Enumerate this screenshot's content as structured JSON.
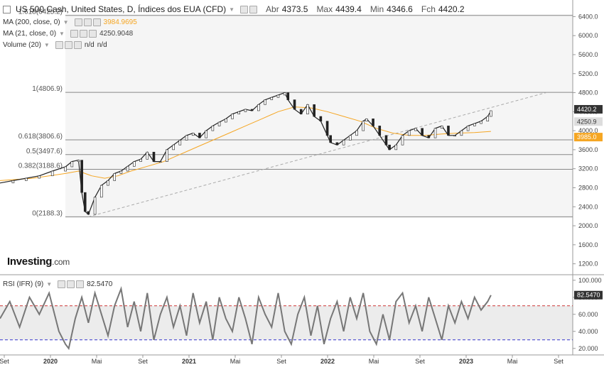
{
  "header": {
    "title": "US 500 Cash, United States, D, Índices dos EUA (CFD)",
    "ohlc": [
      {
        "key": "Abr",
        "value": "4373.5"
      },
      {
        "key": "Max",
        "value": "4439.4"
      },
      {
        "key": "Min",
        "value": "4346.6"
      },
      {
        "key": "Fch",
        "value": "4420.2"
      }
    ]
  },
  "indicators": {
    "ma200": {
      "label": "MA (200, close, 0)",
      "value": "3984.9695",
      "color": "#f5a623"
    },
    "ma21": {
      "label": "MA (21, close, 0)",
      "value": "4250.9048",
      "color": "#888888"
    },
    "volume": {
      "label": "Volume (20)",
      "v1": "n/d",
      "v2": "n/d"
    },
    "rsi": {
      "label": "RSI (IFR) (9)",
      "value": "82.5470"
    }
  },
  "logo": {
    "brand": "Investing",
    "suffix": ".com"
  },
  "price_badges": {
    "close": "4420.2",
    "ma21": "4250.9",
    "ma200": "3985.0"
  },
  "rsi_badge": "82.5470",
  "colors": {
    "up": "#ffffff",
    "down": "#222222",
    "ma200": "#f5a623",
    "ma21": "#999999",
    "rsi": "#777777",
    "fib": "#888888",
    "rsi_upper": "#cc3333",
    "rsi_lower": "#3333cc",
    "badge_close": "#333333",
    "badge_ma": "#f5a623"
  },
  "chart_data": {
    "type": "line",
    "price_axis": {
      "ticks": [
        1200,
        1600,
        2000,
        2400,
        2800,
        3200,
        3600,
        4000,
        4400,
        4800,
        5200,
        5600,
        6000,
        6400
      ],
      "labels": [
        "1200.0",
        "1600.0",
        "2000.0",
        "2400.0",
        "2800.0",
        "3200.0",
        "3600.0",
        "4000.0",
        "4400.0",
        "4800.0",
        "5200.0",
        "5600.0",
        "6000.0",
        "6400.0"
      ],
      "range": [
        1000,
        6600
      ]
    },
    "rsi_axis": {
      "ticks": [
        20,
        40,
        60,
        80,
        100
      ],
      "labels": [
        "20.000",
        "40.000",
        "60.000",
        "80.000",
        "100.000"
      ],
      "range": [
        14,
        104
      ],
      "upper": 70,
      "lower": 30
    },
    "time_axis": {
      "labels": [
        "Set",
        "2020",
        "Mai",
        "Set",
        "2021",
        "Mai",
        "Set",
        "2022",
        "Mai",
        "Set",
        "2023",
        "Mai",
        "Set"
      ],
      "years": [
        "2020",
        "2021",
        "2022",
        "2023"
      ]
    },
    "fib_levels": [
      {
        "label": "1.618(6425.2)",
        "price": 6425.2
      },
      {
        "label": "1(4806.9)",
        "price": 4806.9
      },
      {
        "label": "0.618(3806.6)",
        "price": 3806.6
      },
      {
        "label": "0.5(3497.6)",
        "price": 3497.6
      },
      {
        "label": "0.382(3188.6)",
        "price": 3188.6
      },
      {
        "label": "0(2188.3)",
        "price": 2188.3
      }
    ],
    "price_series": [
      [
        0,
        2900
      ],
      [
        4,
        2950
      ],
      [
        8,
        3000
      ],
      [
        12,
        3050
      ],
      [
        16,
        3150
      ],
      [
        20,
        3240
      ],
      [
        22,
        3350
      ],
      [
        24,
        3380
      ],
      [
        25,
        2700
      ],
      [
        26,
        2300
      ],
      [
        27,
        2240
      ],
      [
        29,
        2600
      ],
      [
        31,
        2850
      ],
      [
        33,
        2950
      ],
      [
        35,
        3100
      ],
      [
        37,
        3150
      ],
      [
        39,
        3250
      ],
      [
        41,
        3350
      ],
      [
        43,
        3400
      ],
      [
        45,
        3550
      ],
      [
        47,
        3350
      ],
      [
        49,
        3350
      ],
      [
        51,
        3600
      ],
      [
        53,
        3700
      ],
      [
        55,
        3800
      ],
      [
        57,
        3900
      ],
      [
        59,
        3950
      ],
      [
        61,
        3850
      ],
      [
        63,
        4000
      ],
      [
        65,
        4100
      ],
      [
        67,
        4180
      ],
      [
        69,
        4250
      ],
      [
        71,
        4350
      ],
      [
        73,
        4400
      ],
      [
        75,
        4450
      ],
      [
        77,
        4420
      ],
      [
        79,
        4550
      ],
      [
        81,
        4650
      ],
      [
        83,
        4700
      ],
      [
        85,
        4750
      ],
      [
        87,
        4800
      ],
      [
        88,
        4650
      ],
      [
        90,
        4450
      ],
      [
        92,
        4350
      ],
      [
        94,
        4550
      ],
      [
        96,
        4300
      ],
      [
        98,
        4200
      ],
      [
        100,
        3900
      ],
      [
        101,
        3750
      ],
      [
        103,
        3700
      ],
      [
        105,
        3800
      ],
      [
        107,
        3900
      ],
      [
        109,
        4000
      ],
      [
        111,
        4200
      ],
      [
        112,
        4250
      ],
      [
        114,
        4100
      ],
      [
        116,
        3900
      ],
      [
        118,
        3700
      ],
      [
        119,
        3600
      ],
      [
        121,
        3700
      ],
      [
        123,
        3900
      ],
      [
        125,
        4000
      ],
      [
        127,
        4050
      ],
      [
        129,
        3900
      ],
      [
        131,
        3850
      ],
      [
        133,
        4050
      ],
      [
        135,
        4100
      ],
      [
        137,
        3900
      ],
      [
        139,
        3900
      ],
      [
        141,
        4000
      ],
      [
        143,
        4100
      ],
      [
        145,
        4150
      ],
      [
        147,
        4200
      ],
      [
        149,
        4300
      ],
      [
        150,
        4420
      ]
    ],
    "ma200_series": [
      [
        0,
        2950
      ],
      [
        10,
        3000
      ],
      [
        20,
        3100
      ],
      [
        24,
        3150
      ],
      [
        28,
        3050
      ],
      [
        32,
        3000
      ],
      [
        36,
        3050
      ],
      [
        40,
        3150
      ],
      [
        45,
        3250
      ],
      [
        50,
        3350
      ],
      [
        55,
        3500
      ],
      [
        60,
        3650
      ],
      [
        65,
        3800
      ],
      [
        70,
        3950
      ],
      [
        75,
        4100
      ],
      [
        80,
        4250
      ],
      [
        85,
        4400
      ],
      [
        90,
        4500
      ],
      [
        95,
        4480
      ],
      [
        100,
        4400
      ],
      [
        105,
        4300
      ],
      [
        110,
        4200
      ],
      [
        115,
        4050
      ],
      [
        120,
        3950
      ],
      [
        125,
        3900
      ],
      [
        130,
        3900
      ],
      [
        135,
        3930
      ],
      [
        140,
        3950
      ],
      [
        145,
        3960
      ],
      [
        150,
        3985
      ]
    ],
    "rsi_series": [
      [
        0,
        55
      ],
      [
        3,
        75
      ],
      [
        6,
        45
      ],
      [
        9,
        80
      ],
      [
        12,
        60
      ],
      [
        15,
        85
      ],
      [
        18,
        40
      ],
      [
        20,
        25
      ],
      [
        21,
        20
      ],
      [
        23,
        55
      ],
      [
        25,
        80
      ],
      [
        27,
        50
      ],
      [
        29,
        85
      ],
      [
        31,
        60
      ],
      [
        33,
        35
      ],
      [
        35,
        70
      ],
      [
        37,
        90
      ],
      [
        39,
        45
      ],
      [
        41,
        75
      ],
      [
        43,
        40
      ],
      [
        45,
        85
      ],
      [
        47,
        30
      ],
      [
        49,
        60
      ],
      [
        51,
        80
      ],
      [
        53,
        45
      ],
      [
        55,
        70
      ],
      [
        57,
        35
      ],
      [
        59,
        85
      ],
      [
        61,
        50
      ],
      [
        63,
        75
      ],
      [
        65,
        30
      ],
      [
        67,
        80
      ],
      [
        69,
        55
      ],
      [
        71,
        40
      ],
      [
        73,
        80
      ],
      [
        75,
        55
      ],
      [
        77,
        25
      ],
      [
        79,
        80
      ],
      [
        81,
        60
      ],
      [
        83,
        45
      ],
      [
        85,
        85
      ],
      [
        87,
        40
      ],
      [
        89,
        25
      ],
      [
        91,
        60
      ],
      [
        93,
        80
      ],
      [
        95,
        35
      ],
      [
        97,
        70
      ],
      [
        99,
        25
      ],
      [
        101,
        55
      ],
      [
        103,
        75
      ],
      [
        105,
        40
      ],
      [
        107,
        80
      ],
      [
        109,
        55
      ],
      [
        111,
        85
      ],
      [
        113,
        40
      ],
      [
        115,
        25
      ],
      [
        117,
        60
      ],
      [
        119,
        30
      ],
      [
        121,
        75
      ],
      [
        123,
        85
      ],
      [
        125,
        50
      ],
      [
        127,
        70
      ],
      [
        129,
        40
      ],
      [
        131,
        80
      ],
      [
        133,
        55
      ],
      [
        135,
        30
      ],
      [
        137,
        70
      ],
      [
        139,
        50
      ],
      [
        141,
        75
      ],
      [
        143,
        55
      ],
      [
        145,
        80
      ],
      [
        147,
        65
      ],
      [
        149,
        75
      ],
      [
        150,
        82.5
      ]
    ],
    "x_range": [
      0,
      175
    ]
  }
}
